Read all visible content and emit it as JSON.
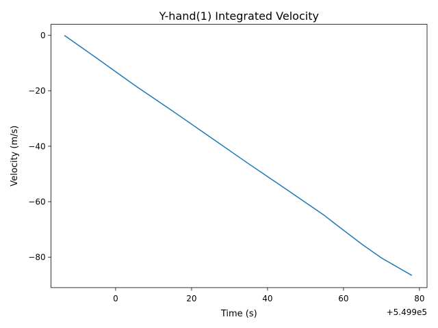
{
  "chart_data": {
    "type": "line",
    "title": "Y-hand(1) Integrated Velocity",
    "xlabel": "Time (s)",
    "ylabel": "Velocity (m/s)",
    "x_offset_label": "+5.499e5",
    "xlim": [
      -17,
      82
    ],
    "ylim": [
      -91,
      4
    ],
    "xticks": [
      0,
      20,
      40,
      60,
      80
    ],
    "xtick_labels": [
      "0",
      "20",
      "40",
      "60",
      "80"
    ],
    "yticks": [
      0,
      -20,
      -40,
      -60,
      -80
    ],
    "ytick_labels": [
      "0",
      "−20",
      "−40",
      "−60",
      "−80"
    ],
    "grid": false,
    "series": [
      {
        "color": "#1f77b4",
        "x": [
          -13.5,
          -5,
          5,
          15,
          25,
          35,
          45,
          55,
          58,
          65,
          70,
          78
        ],
        "y": [
          0,
          -8.2,
          -18.0,
          -27.3,
          -36.8,
          -46.3,
          -55.6,
          -65.0,
          -68.2,
          -75.5,
          -80.3,
          -86.6
        ]
      }
    ]
  }
}
